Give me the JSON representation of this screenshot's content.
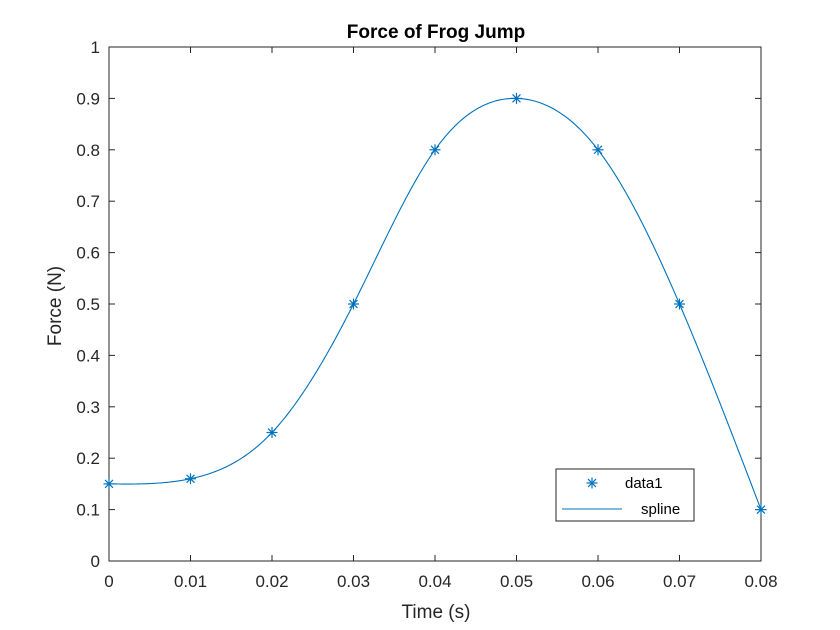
{
  "chart_data": {
    "type": "line",
    "title": "Force of Frog Jump",
    "xlabel": "Time (s)",
    "ylabel": "Force (N)",
    "xlim": [
      0,
      0.08
    ],
    "ylim": [
      0,
      1
    ],
    "xticks": [
      "0",
      "0.01",
      "0.02",
      "0.03",
      "0.04",
      "0.05",
      "0.06",
      "0.07",
      "0.08"
    ],
    "yticks": [
      "0",
      "0.1",
      "0.2",
      "0.3",
      "0.4",
      "0.5",
      "0.6",
      "0.7",
      "0.8",
      "0.9",
      "1"
    ],
    "grid": false,
    "legend_position": "bottom-right",
    "series": [
      {
        "name": "data1",
        "style": "markers",
        "marker": "asterisk",
        "color": "#0072BD",
        "x": [
          0,
          0.01,
          0.02,
          0.03,
          0.04,
          0.05,
          0.06,
          0.07,
          0.08
        ],
        "y": [
          0.15,
          0.16,
          0.25,
          0.5,
          0.8,
          0.9,
          0.8,
          0.5,
          0.1
        ]
      },
      {
        "name": "spline",
        "style": "line",
        "color": "#0072BD",
        "interpolation": "cubic-spline",
        "x": [
          0,
          0.01,
          0.02,
          0.03,
          0.04,
          0.05,
          0.06,
          0.07,
          0.08
        ],
        "y": [
          0.15,
          0.16,
          0.25,
          0.5,
          0.8,
          0.9,
          0.8,
          0.5,
          0.1
        ]
      }
    ]
  }
}
